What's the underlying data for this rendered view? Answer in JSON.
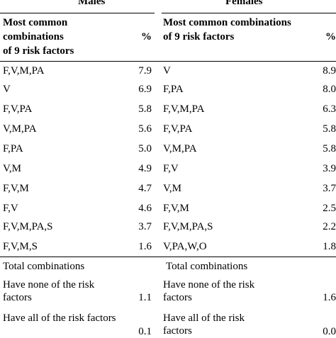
{
  "groups": {
    "males": "Males",
    "females": "Females"
  },
  "headers": {
    "males_combo": [
      "Most common",
      "combinations",
      "of 9 risk factors"
    ],
    "males_pct": "%",
    "females_combo": [
      "Most common combinations",
      "of  9 risk factors"
    ],
    "females_pct": "%"
  },
  "rows": [
    {
      "m_combo": "F,V,M,PA",
      "m_pct": "7.9",
      "f_combo": "V",
      "f_pct": "8.9"
    },
    {
      "m_combo": "V",
      "m_pct": "6.9",
      "f_combo": "F,PA",
      "f_pct": "8.0"
    },
    {
      "m_combo": "F,V,PA",
      "m_pct": "5.8",
      "f_combo": "F,V,M,PA",
      "f_pct": "6.3"
    },
    {
      "m_combo": "V,M,PA",
      "m_pct": "5.6",
      "f_combo": "F,V,PA",
      "f_pct": "5.8"
    },
    {
      "m_combo": "F,PA",
      "m_pct": "5.0",
      "f_combo": "V,M,PA",
      "f_pct": "5.8"
    },
    {
      "m_combo": "V,M",
      "m_pct": "4.9",
      "f_combo": "F,V",
      "f_pct": "3.9"
    },
    {
      "m_combo": "F,V,M",
      "m_pct": "4.7",
      "f_combo": "V,M",
      "f_pct": "3.7"
    },
    {
      "m_combo": "F,V",
      "m_pct": "4.6",
      "f_combo": "F,V,M",
      "f_pct": "2.5"
    },
    {
      "m_combo": "F,V,M,PA,S",
      "m_pct": "3.7",
      "f_combo": "F,V,M,PA,S",
      "f_pct": "2.2"
    },
    {
      "m_combo": "F,V,M,S",
      "m_pct": "1.6",
      "f_combo": "V,PA,W,O",
      "f_pct": "1.8"
    }
  ],
  "summary": {
    "total_label_m": "Total combinations",
    "total_label_f": "Total combinations",
    "none_label_m": [
      "Have none of the risk",
      "factors"
    ],
    "none_pct_m": "1.1",
    "none_label_f": [
      "Have none of the risk",
      "factors"
    ],
    "none_pct_f": "1.6",
    "all_label_m": "Have all of the risk factors",
    "all_pct_m": "0.1",
    "all_label_f": [
      "Have all of the risk",
      "factors"
    ],
    "all_pct_f": "0.0"
  }
}
